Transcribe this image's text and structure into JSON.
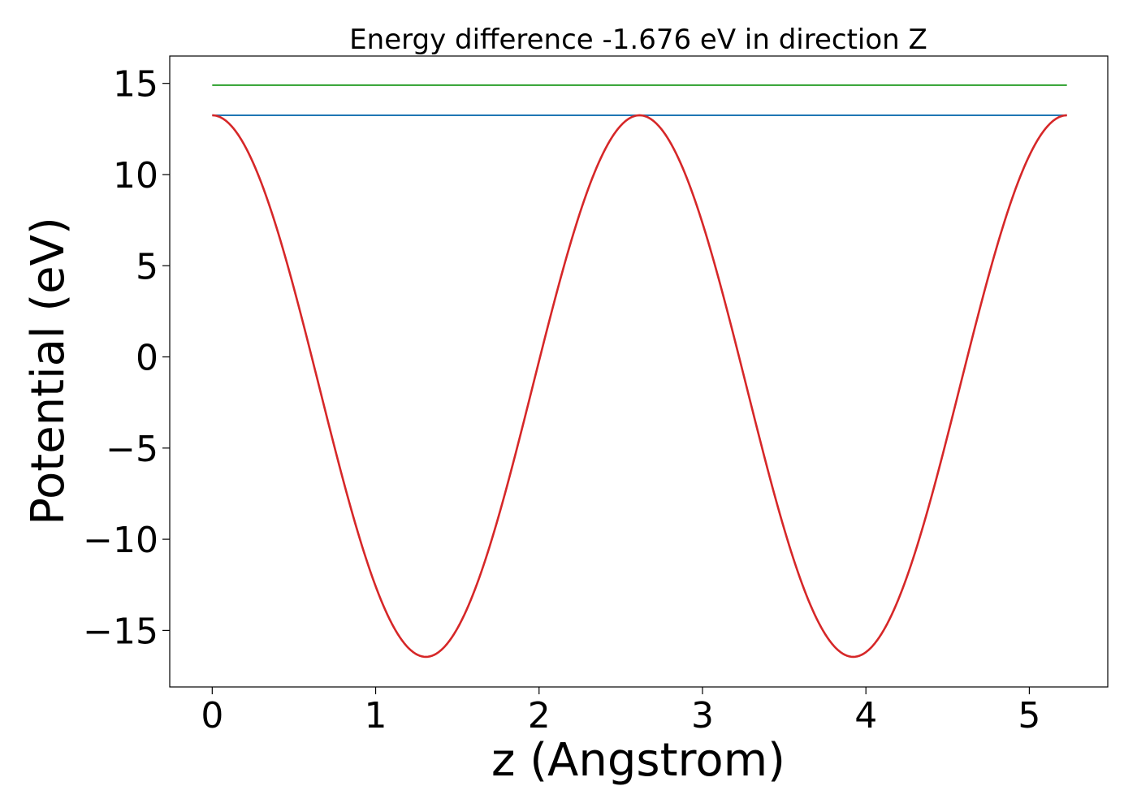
{
  "chart_data": {
    "type": "line",
    "title": "Energy difference -1.676 eV in direction Z",
    "xlabel": "z (Angstrom)",
    "ylabel": "Potential (eV)",
    "xlim": [
      -0.26,
      5.48
    ],
    "ylim": [
      -18.1,
      16.5
    ],
    "x_ticks": [
      0,
      1,
      2,
      3,
      4,
      5
    ],
    "x_tick_labels": [
      "0",
      "1",
      "2",
      "3",
      "4",
      "5"
    ],
    "y_ticks": [
      15,
      10,
      5,
      0,
      -5,
      -10,
      -15
    ],
    "y_tick_labels": [
      "15",
      "10",
      "5",
      "0",
      "−5",
      "−10",
      "−15"
    ],
    "grid": false,
    "series": [
      {
        "color": "#2ca02c",
        "style": "horizontal",
        "x": [
          0,
          5.23
        ],
        "y": [
          14.9,
          14.9
        ]
      },
      {
        "color": "#1f77b4",
        "style": "horizontal",
        "x": [
          0,
          5.23
        ],
        "y": [
          13.25,
          13.25
        ]
      },
      {
        "color": "#d62728",
        "style": "cosine",
        "x_start": 0,
        "x_end": 5.23,
        "period": 2.615,
        "max": 13.25,
        "min": -16.45,
        "x": [
          0,
          0.33,
          0.65,
          0.98,
          1.31,
          1.63,
          1.96,
          2.29,
          2.62,
          2.94,
          3.27,
          3.6,
          3.92,
          4.25,
          4.58,
          4.9,
          5.23
        ],
        "y": [
          13.25,
          8.9,
          -1.6,
          -12.1,
          -16.45,
          -12.1,
          -1.6,
          8.9,
          13.25,
          8.9,
          -1.6,
          -12.1,
          -16.45,
          -12.1,
          -1.6,
          8.9,
          13.25
        ]
      }
    ]
  }
}
